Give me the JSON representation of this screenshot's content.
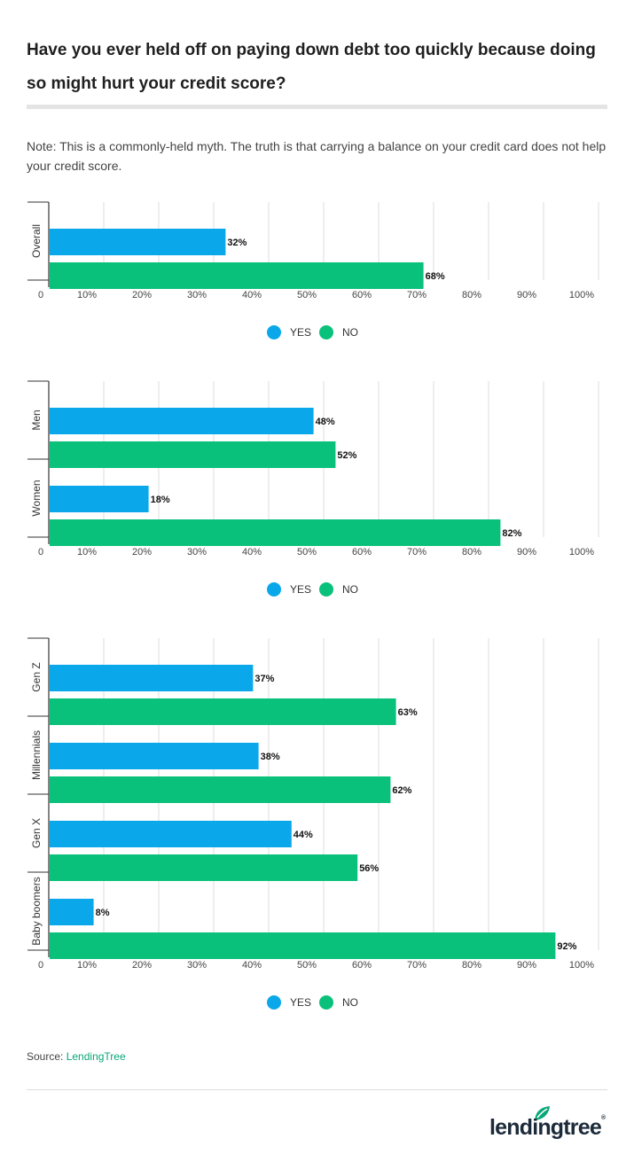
{
  "title": "Have you ever held off on paying down debt too quickly because doing so might hurt your credit score?",
  "note": "Note: This is a commonly-held myth. The truth is that carrying a balance on your credit card does not help your credit score.",
  "colors": {
    "yes": "#0aa8ea",
    "no": "#0ac17b",
    "grid": "#dcdcdc",
    "axis": "#333333",
    "accent": "#08a878"
  },
  "legend": {
    "yes": "YES",
    "no": "NO"
  },
  "source": {
    "prefix": "Source: ",
    "name": "LendingTree"
  },
  "logo": {
    "text": "lendingtree",
    "mark": "®"
  },
  "chart_data": [
    {
      "type": "bar",
      "orientation": "horizontal",
      "categories": [
        "Overall"
      ],
      "series": [
        {
          "name": "YES",
          "values": [
            32
          ]
        },
        {
          "name": "NO",
          "values": [
            68
          ]
        }
      ],
      "xlim": [
        0,
        100
      ],
      "ticks": [
        "0",
        "10%",
        "20%",
        "30%",
        "40%",
        "50%",
        "60%",
        "70%",
        "80%",
        "90%",
        "100%"
      ],
      "grid": true,
      "legend_position": "bottom"
    },
    {
      "type": "bar",
      "orientation": "horizontal",
      "categories": [
        "Men",
        "Women"
      ],
      "series": [
        {
          "name": "YES",
          "values": [
            48,
            18
          ]
        },
        {
          "name": "NO",
          "values": [
            52,
            82
          ]
        }
      ],
      "xlim": [
        0,
        100
      ],
      "ticks": [
        "0",
        "10%",
        "20%",
        "30%",
        "40%",
        "50%",
        "60%",
        "70%",
        "80%",
        "90%",
        "100%"
      ],
      "grid": true,
      "legend_position": "bottom"
    },
    {
      "type": "bar",
      "orientation": "horizontal",
      "categories": [
        "Gen Z",
        "Millennials",
        "Gen X",
        "Baby boomers"
      ],
      "series": [
        {
          "name": "YES",
          "values": [
            37,
            38,
            44,
            8
          ]
        },
        {
          "name": "NO",
          "values": [
            63,
            62,
            56,
            92
          ]
        }
      ],
      "xlim": [
        0,
        100
      ],
      "ticks": [
        "0",
        "10%",
        "20%",
        "30%",
        "40%",
        "50%",
        "60%",
        "70%",
        "80%",
        "90%",
        "100%"
      ],
      "grid": true,
      "legend_position": "bottom"
    }
  ]
}
